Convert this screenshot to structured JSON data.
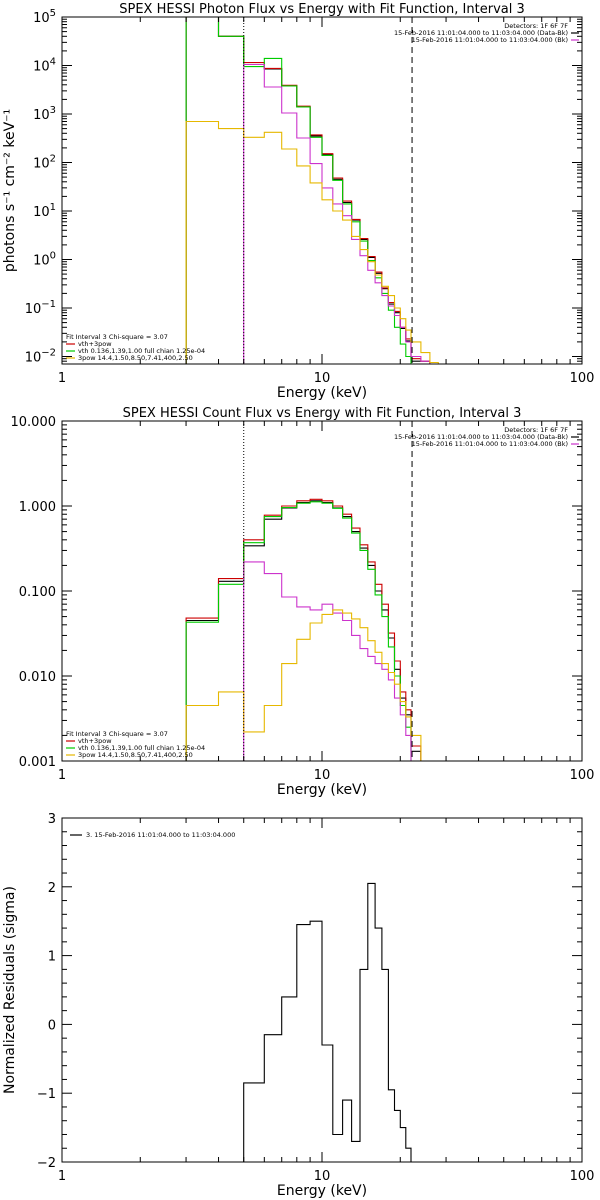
{
  "chart_data": [
    {
      "type": "line",
      "title": "SPEX HESSI Photon Flux vs Energy with Fit Function, Interval 3",
      "xlabel": "Energy (keV)",
      "ylabel": "photons s⁻¹ cm⁻² keV⁻¹",
      "xscale": "log",
      "yscale": "log",
      "xlim": [
        1,
        100
      ],
      "ylim": [
        0.007,
        100000
      ],
      "xticks": [
        {
          "v": 1,
          "label": "1"
        },
        {
          "v": 10,
          "label": "10"
        },
        {
          "v": 100,
          "label": "100"
        }
      ],
      "yticks": [
        {
          "v": 0.01,
          "b": "10",
          "e": "−2"
        },
        {
          "v": 0.1,
          "b": "10",
          "e": "−1"
        },
        {
          "v": 1,
          "b": "10",
          "e": "0"
        },
        {
          "v": 10,
          "b": "10",
          "e": "1"
        },
        {
          "v": 100,
          "b": "10",
          "e": "2"
        },
        {
          "v": 1000,
          "b": "10",
          "e": "3"
        },
        {
          "v": 10000,
          "b": "10",
          "e": "4"
        },
        {
          "v": 100000,
          "b": "10",
          "e": "5"
        }
      ],
      "vlines": [
        {
          "x": 5,
          "style": "dotted"
        },
        {
          "x": 22.2,
          "style": "dashed"
        }
      ],
      "header_lines": [
        {
          "text": "Detectors: 1F 6F 7F",
          "swatch": ""
        },
        {
          "text": "15-Feb-2016 11:01:04.000 to 11:03:04.000 (Data-Bk)",
          "swatch": "#000000"
        },
        {
          "text": "15-Feb-2016 11:01:04.000 to 11:03:04.000 (Bk)",
          "swatch": "#cc33cc"
        }
      ],
      "legend": [
        {
          "text": "Fit Interval 3   Chi-square = 3.07",
          "swatch": ""
        },
        {
          "text": "vth+3pow",
          "swatch": "#cc0000"
        },
        {
          "text": "vth 0.136,1.39,1.00  full chian 1.25e-04",
          "swatch": "#00cc00"
        },
        {
          "text": "3pow 14.4,1.50,8.50,7.41,400,2.50",
          "swatch": "#e6b800"
        }
      ],
      "series": [
        {
          "color": "#000000",
          "edges": [
            3,
            4,
            5,
            6,
            7,
            8,
            9,
            10,
            11,
            12,
            13,
            14,
            15,
            16,
            17,
            18,
            19,
            20,
            21,
            22,
            24,
            26
          ],
          "values": [
            100000,
            40000,
            10500,
            8500,
            3800,
            1400,
            350,
            145,
            45,
            15,
            6.5,
            2.6,
            1.1,
            0.52,
            0.25,
            0.12,
            0.08,
            0.038,
            0.021,
            0.008,
            0.008
          ]
        },
        {
          "color": "#cc0000",
          "edges": [
            3,
            4,
            5,
            6,
            7,
            8,
            9,
            10,
            11,
            12,
            13,
            14,
            15,
            16,
            17,
            18,
            19,
            20,
            21,
            22,
            24,
            26
          ],
          "values": [
            100000,
            40000,
            11500,
            8700,
            3900,
            1450,
            370,
            152,
            48,
            16,
            6.7,
            2.7,
            1.15,
            0.55,
            0.26,
            0.13,
            0.085,
            0.04,
            0.023,
            0.009,
            0.008
          ]
        },
        {
          "color": "#00cc00",
          "edges": [
            3,
            4,
            5,
            6,
            7,
            8,
            9,
            10,
            11,
            12,
            13,
            14,
            15,
            16,
            17,
            18,
            19,
            20,
            21,
            22
          ],
          "values": [
            100000,
            40000,
            9500,
            14000,
            3800,
            1400,
            330,
            140,
            43,
            14,
            6,
            2.4,
            0.95,
            0.42,
            0.2,
            0.09,
            0.04,
            0.018,
            0.01
          ]
        },
        {
          "color": "#cc33cc",
          "edges": [
            5,
            6,
            7,
            8,
            9,
            10,
            11,
            12,
            13,
            14,
            15,
            16,
            17,
            18,
            19,
            20,
            21,
            22,
            24,
            26
          ],
          "values": [
            10500,
            3600,
            1050,
            320,
            95,
            30,
            14,
            8,
            2.6,
            1.2,
            0.6,
            0.33,
            0.18,
            0.11,
            0.07,
            0.04,
            0.02,
            0.01,
            0.008
          ]
        },
        {
          "color": "#e6b800",
          "edges": [
            3,
            4,
            5,
            6,
            7,
            8,
            9,
            10,
            11,
            12,
            13,
            14,
            15,
            16,
            17,
            18,
            19,
            20,
            21,
            22,
            24,
            26,
            28
          ],
          "values": [
            700,
            500,
            330,
            420,
            190,
            85,
            38,
            17,
            10,
            6.5,
            3,
            1.6,
            0.9,
            0.48,
            0.28,
            0.18,
            0.1,
            0.06,
            0.035,
            0.02,
            0.012,
            0.0075
          ]
        }
      ]
    },
    {
      "type": "line",
      "title": "SPEX HESSI Count Flux vs Energy with Fit Function, Interval 3",
      "xlabel": "Energy (keV)",
      "ylabel": "",
      "xscale": "log",
      "yscale": "log",
      "xlim": [
        1,
        100
      ],
      "ylim": [
        0.001,
        10
      ],
      "xticks": [
        {
          "v": 1,
          "label": "1"
        },
        {
          "v": 10,
          "label": "10"
        },
        {
          "v": 100,
          "label": "100"
        }
      ],
      "yticks": [
        {
          "v": 0.001,
          "label": "0.001"
        },
        {
          "v": 0.01,
          "label": "0.010"
        },
        {
          "v": 0.1,
          "label": "0.100"
        },
        {
          "v": 1,
          "label": "1.000"
        },
        {
          "v": 10,
          "label": "10.000"
        }
      ],
      "vlines": [
        {
          "x": 5,
          "style": "dotted"
        },
        {
          "x": 22.2,
          "style": "dashed"
        }
      ],
      "header_lines": [
        {
          "text": "Detectors: 1F 6F 7F",
          "swatch": ""
        },
        {
          "text": "15-Feb-2016 11:01:04.000 to 11:03:04.000 (Data-Bk)",
          "swatch": "#000000"
        },
        {
          "text": "15-Feb-2016 11:01:04.000 to 11:03:04.000 (Bk)",
          "swatch": "#cc33cc"
        }
      ],
      "legend": [
        {
          "text": "Fit Interval 3   Chi-square = 3.07",
          "swatch": ""
        },
        {
          "text": "vth+3pow",
          "swatch": "#cc0000"
        },
        {
          "text": "vth 0.136,1.39,1.00  full chian 1.25e-04",
          "swatch": "#00cc00"
        },
        {
          "text": "3pow 14.4,1.50,8.50,7.41,400,2.50",
          "swatch": "#e6b800"
        }
      ],
      "series": [
        {
          "color": "#000000",
          "edges": [
            3,
            4,
            5,
            6,
            7,
            8,
            9,
            10,
            11,
            12,
            13,
            14,
            15,
            16,
            17,
            18,
            19,
            20,
            21,
            22,
            24
          ],
          "values": [
            0.045,
            0.13,
            0.34,
            0.7,
            0.95,
            1.1,
            1.15,
            1.1,
            0.95,
            0.75,
            0.5,
            0.32,
            0.2,
            0.1,
            0.06,
            0.028,
            0.012,
            0.0055,
            0.0035,
            0.0013
          ]
        },
        {
          "color": "#cc0000",
          "edges": [
            3,
            4,
            5,
            6,
            7,
            8,
            9,
            10,
            11,
            12,
            13,
            14,
            15,
            16,
            17,
            18,
            19,
            20,
            21,
            22,
            24
          ],
          "values": [
            0.048,
            0.14,
            0.4,
            0.78,
            1.0,
            1.15,
            1.2,
            1.15,
            1.0,
            0.8,
            0.55,
            0.35,
            0.22,
            0.12,
            0.07,
            0.032,
            0.015,
            0.0065,
            0.004,
            0.0015
          ]
        },
        {
          "color": "#00cc00",
          "edges": [
            3,
            4,
            5,
            6,
            7,
            8,
            9,
            10,
            11,
            12,
            13,
            14,
            15,
            16,
            17,
            18,
            19,
            20,
            21,
            22,
            24
          ],
          "values": [
            0.043,
            0.12,
            0.37,
            0.75,
            0.96,
            1.08,
            1.12,
            1.08,
            0.94,
            0.72,
            0.48,
            0.3,
            0.18,
            0.09,
            0.05,
            0.022,
            0.01,
            0.0045,
            0.0025,
            0.001
          ]
        },
        {
          "color": "#cc33cc",
          "edges": [
            5,
            6,
            7,
            8,
            9,
            10,
            11,
            12,
            13,
            14,
            15,
            16,
            17,
            18,
            19,
            20,
            21,
            22
          ],
          "values": [
            0.22,
            0.16,
            0.085,
            0.065,
            0.06,
            0.07,
            0.055,
            0.045,
            0.03,
            0.021,
            0.017,
            0.014,
            0.012,
            0.009,
            0.0055,
            0.0035,
            0.002
          ]
        },
        {
          "color": "#e6b800",
          "edges": [
            3,
            4,
            5,
            6,
            7,
            8,
            9,
            10,
            11,
            12,
            13,
            14,
            15,
            16,
            17,
            18,
            19,
            20,
            21,
            22,
            24,
            26
          ],
          "values": [
            0.0045,
            0.0065,
            0.0022,
            0.0045,
            0.014,
            0.027,
            0.042,
            0.053,
            0.06,
            0.055,
            0.047,
            0.037,
            0.026,
            0.019,
            0.014,
            0.011,
            0.008,
            0.005,
            0.0033,
            0.002,
            0.001
          ]
        }
      ]
    },
    {
      "type": "line",
      "title": "",
      "xlabel": "Energy (keV)",
      "ylabel": "Normalized Residuals (sigma)",
      "xscale": "log",
      "yscale": "linear",
      "xlim": [
        1,
        100
      ],
      "ylim": [
        -2,
        3
      ],
      "xticks": [
        {
          "v": 1,
          "label": "1"
        },
        {
          "v": 10,
          "label": "10"
        },
        {
          "v": 100,
          "label": "100"
        }
      ],
      "yticks": [
        {
          "v": -2,
          "label": "−2"
        },
        {
          "v": -1,
          "label": "−1"
        },
        {
          "v": 0,
          "label": "0"
        },
        {
          "v": 1,
          "label": "1"
        },
        {
          "v": 2,
          "label": "2"
        },
        {
          "v": 3,
          "label": "3"
        }
      ],
      "vlines": [],
      "header_lines": [],
      "legend": [
        {
          "text": "3. 15-Feb-2016 11:01:04.000 to 11:03:04.000",
          "swatch": "#000000"
        }
      ],
      "series": [
        {
          "color": "#000000",
          "edges": [
            5,
            6,
            7,
            8,
            9,
            10,
            11,
            12,
            13,
            14,
            15,
            16,
            17,
            18,
            19,
            20,
            21,
            22
          ],
          "values": [
            -0.85,
            -0.15,
            0.4,
            1.45,
            1.5,
            -0.3,
            -1.6,
            -1.1,
            -1.7,
            0.8,
            2.05,
            1.4,
            0.8,
            -0.95,
            -1.25,
            -1.5,
            -1.8
          ]
        }
      ]
    }
  ]
}
